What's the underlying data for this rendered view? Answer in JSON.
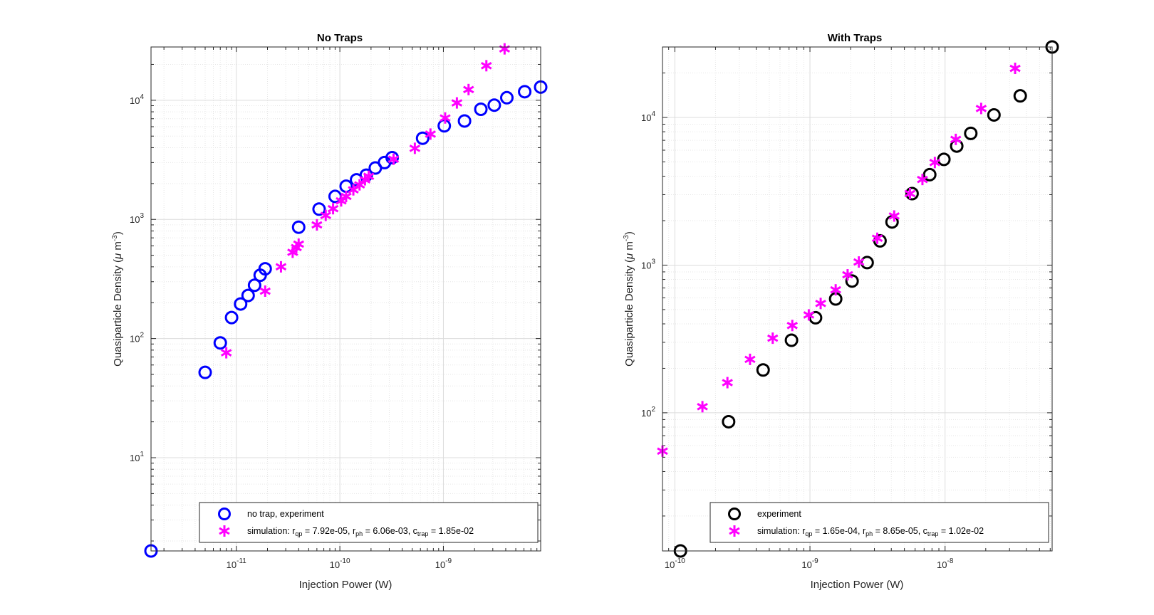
{
  "colors": {
    "experiment_left": "#0000ff",
    "experiment_right": "#000000",
    "simulation": "#ff00ff"
  },
  "chart_data": [
    {
      "type": "scatter",
      "title": "No Traps",
      "xlabel": "Injection Power (W)",
      "ylabel_main": "Quasiparticle Density (",
      "ylabel_mu": "μ",
      "ylabel_unit": " m",
      "ylabel_exp": "-3",
      "ylabel_close": ")",
      "xscale": "log",
      "yscale": "log",
      "xlim": [
        1.5e-12,
        8.7e-09
      ],
      "ylim": [
        1.65,
        28000
      ],
      "xticks": [
        1e-11,
        1e-10,
        1e-09
      ],
      "xtick_labels": [
        {
          "base": "10",
          "exp": "-11"
        },
        {
          "base": "10",
          "exp": "-10"
        },
        {
          "base": "10",
          "exp": "-9"
        }
      ],
      "yticks": [
        10,
        100,
        1000,
        10000
      ],
      "ytick_labels": [
        {
          "base": "10",
          "exp": "1"
        },
        {
          "base": "10",
          "exp": "2"
        },
        {
          "base": "10",
          "exp": "3"
        },
        {
          "base": "10",
          "exp": "4"
        }
      ],
      "grid": true,
      "legend_position": "bottom-right",
      "series": [
        {
          "name": "no trap, experiment",
          "marker": "circle",
          "color": "#0000ff",
          "points": [
            [
              1.5e-12,
              1.65
            ],
            [
              5e-12,
              52
            ],
            [
              7e-12,
              92
            ],
            [
              9e-12,
              150
            ],
            [
              1.1e-11,
              195
            ],
            [
              1.3e-11,
              230
            ],
            [
              1.5e-11,
              280
            ],
            [
              1.7e-11,
              340
            ],
            [
              1.9e-11,
              385
            ],
            [
              4e-11,
              860
            ],
            [
              6.3e-11,
              1220
            ],
            [
              9e-11,
              1560
            ],
            [
              1.15e-10,
              1900
            ],
            [
              1.45e-10,
              2150
            ],
            [
              1.8e-10,
              2350
            ],
            [
              2.2e-10,
              2700
            ],
            [
              2.7e-10,
              3000
            ],
            [
              3.2e-10,
              3300
            ],
            [
              6.3e-10,
              4800
            ],
            [
              1.02e-09,
              6100
            ],
            [
              1.6e-09,
              6700
            ],
            [
              2.3e-09,
              8400
            ],
            [
              3.1e-09,
              9100
            ],
            [
              4.1e-09,
              10500
            ],
            [
              6.1e-09,
              11800
            ],
            [
              8.7e-09,
              12900
            ]
          ]
        },
        {
          "name_prefix": "simulation: r",
          "name_sub1": "qp",
          "name_mid1": " = 7.92e-05, r",
          "name_sub2": "ph",
          "name_mid2": " = 6.06e-03, c",
          "name_sub3": "trap",
          "name_end": " = 1.85e-02",
          "marker": "asterisk",
          "color": "#ff00ff",
          "points": [
            [
              8e-12,
              76
            ],
            [
              1.9e-11,
              250
            ],
            [
              2.7e-11,
              400
            ],
            [
              3.5e-11,
              530
            ],
            [
              3.8e-11,
              580
            ],
            [
              4e-11,
              620
            ],
            [
              6e-11,
              900
            ],
            [
              7.3e-11,
              1080
            ],
            [
              8.6e-11,
              1230
            ],
            [
              1.03e-10,
              1430
            ],
            [
              1.15e-10,
              1560
            ],
            [
              1.35e-10,
              1770
            ],
            [
              1.55e-10,
              1950
            ],
            [
              1.75e-10,
              2150
            ],
            [
              1.9e-10,
              2300
            ],
            [
              3.3e-10,
              3200
            ],
            [
              5.3e-10,
              3950
            ],
            [
              7.5e-10,
              5200
            ],
            [
              1.04e-09,
              7100
            ],
            [
              1.35e-09,
              9500
            ],
            [
              1.75e-09,
              12300
            ],
            [
              2.6e-09,
              19500
            ],
            [
              3.9e-09,
              27000
            ]
          ]
        }
      ]
    },
    {
      "type": "scatter",
      "title": "With Traps",
      "xlabel": "Injection Power (W)",
      "ylabel_main": "Quasiparticle Density (",
      "ylabel_mu": "μ",
      "ylabel_unit": " m",
      "ylabel_exp": "-3",
      "ylabel_close": ")",
      "xscale": "log",
      "yscale": "log",
      "xlim": [
        8.1e-11,
        6.2e-08
      ],
      "ylim": [
        11.6,
        30000
      ],
      "xticks": [
        1e-10,
        1e-09,
        1e-08
      ],
      "xtick_labels": [
        {
          "base": "10",
          "exp": "-10"
        },
        {
          "base": "10",
          "exp": "-9"
        },
        {
          "base": "10",
          "exp": "-8"
        }
      ],
      "yticks": [
        100,
        1000,
        10000
      ],
      "ytick_labels": [
        {
          "base": "10",
          "exp": "2"
        },
        {
          "base": "10",
          "exp": "3"
        },
        {
          "base": "10",
          "exp": "4"
        }
      ],
      "grid": true,
      "legend_position": "bottom-right",
      "series": [
        {
          "name": "experiment",
          "marker": "circle",
          "color": "#000000",
          "points": [
            [
              1.1e-10,
              11.6
            ],
            [
              2.5e-10,
              87
            ],
            [
              4.5e-10,
              195
            ],
            [
              7.3e-10,
              310
            ],
            [
              1.1e-09,
              440
            ],
            [
              1.55e-09,
              590
            ],
            [
              2.05e-09,
              780
            ],
            [
              2.65e-09,
              1040
            ],
            [
              3.3e-09,
              1460
            ],
            [
              4.05e-09,
              1960
            ],
            [
              5.7e-09,
              3050
            ],
            [
              7.7e-09,
              4100
            ],
            [
              9.8e-09,
              5200
            ],
            [
              1.22e-08,
              6400
            ],
            [
              1.55e-08,
              7800
            ],
            [
              2.3e-08,
              10400
            ],
            [
              3.6e-08,
              14000
            ],
            [
              6.2e-08,
              30000
            ]
          ]
        },
        {
          "name_prefix": "simulation: r",
          "name_sub1": "qp",
          "name_mid1": " = 1.65e-04, r",
          "name_sub2": "ph",
          "name_mid2": " = 8.65e-05, c",
          "name_sub3": "trap",
          "name_end": " = 1.02e-02",
          "marker": "asterisk",
          "color": "#ff00ff",
          "points": [
            [
              8.1e-11,
              55
            ],
            [
              1.6e-10,
              110
            ],
            [
              2.45e-10,
              160
            ],
            [
              3.6e-10,
              230
            ],
            [
              5.3e-10,
              320
            ],
            [
              7.4e-10,
              390
            ],
            [
              9.8e-10,
              460
            ],
            [
              1.2e-09,
              550
            ],
            [
              1.55e-09,
              680
            ],
            [
              1.9e-09,
              860
            ],
            [
              2.3e-09,
              1050
            ],
            [
              3.15e-09,
              1520
            ],
            [
              4.2e-09,
              2150
            ],
            [
              5.5e-09,
              3050
            ],
            [
              6.8e-09,
              3800
            ],
            [
              8.4e-09,
              4950
            ],
            [
              1.2e-08,
              7100
            ],
            [
              1.85e-08,
              11500
            ],
            [
              3.3e-08,
              21500
            ]
          ]
        }
      ]
    }
  ]
}
